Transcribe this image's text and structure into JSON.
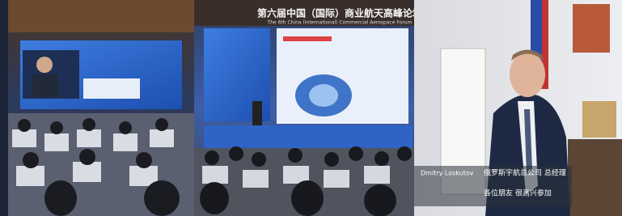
{
  "forum_banner": {
    "title": "第六届中国（国际）商业航天高峰论坛",
    "subtitle": "The 6th China (International) Commercial Aerospace Forum"
  },
  "video_caption": {
    "name": "Dmitry Loskutov",
    "title": "俄罗斯宇航总公司 总经理",
    "subtitle": "各位朋友 很高兴参加"
  }
}
